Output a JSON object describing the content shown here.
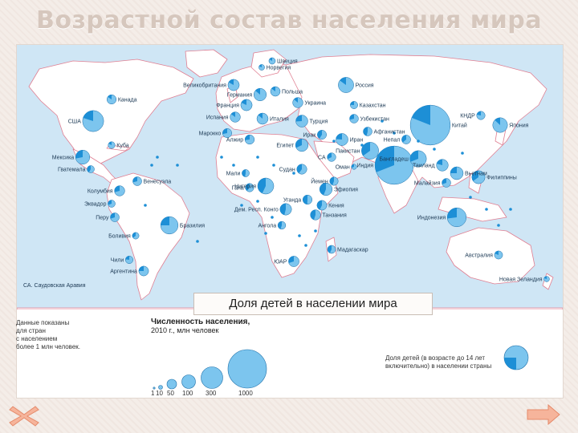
{
  "title": "Возрастной состав населения мира",
  "caption": "Доля детей в населении мира",
  "legend": {
    "note_lines": [
      "Данные показаны",
      "для стран",
      "с населением",
      "более 1 млн человек."
    ],
    "size_title_line1": "Численность населения,",
    "size_title_line2": "2010 г., млн человек",
    "size_values": [
      "1",
      "10",
      "50",
      "100",
      "300",
      "1000"
    ],
    "share_label_line1": "Доля детей (в возрасте до 14 лет",
    "share_label_line2": "включительно) в населении страны"
  },
  "map": {
    "footnote": "СА. Саудовская Аравия",
    "countries": [
      {
        "name": "Канада",
        "pop": 34,
        "share": 0.16
      },
      {
        "name": "США",
        "pop": 310,
        "share": 0.2
      },
      {
        "name": "Мексика",
        "pop": 113,
        "share": 0.28
      },
      {
        "name": "Куба",
        "pop": 11,
        "share": 0.17
      },
      {
        "name": "Гватемала",
        "pop": 14,
        "share": 0.42
      },
      {
        "name": "Венесуэла",
        "pop": 29,
        "share": 0.29
      },
      {
        "name": "Колумбия",
        "pop": 46,
        "share": 0.29
      },
      {
        "name": "Эквадор",
        "pop": 14,
        "share": 0.31
      },
      {
        "name": "Перу",
        "pop": 29,
        "share": 0.3
      },
      {
        "name": "Бразилия",
        "pop": 195,
        "share": 0.25
      },
      {
        "name": "Боливия",
        "pop": 10,
        "share": 0.36
      },
      {
        "name": "Чили",
        "pop": 17,
        "share": 0.23
      },
      {
        "name": "Аргентина",
        "pop": 40,
        "share": 0.25
      },
      {
        "name": "Швеция",
        "pop": 9,
        "share": 0.17
      },
      {
        "name": "Норвегия",
        "pop": 5,
        "share": 0.19
      },
      {
        "name": "Великобритания",
        "pop": 62,
        "share": 0.17
      },
      {
        "name": "Германия",
        "pop": 82,
        "share": 0.14
      },
      {
        "name": "Франция",
        "pop": 63,
        "share": 0.18
      },
      {
        "name": "Польша",
        "pop": 38,
        "share": 0.15
      },
      {
        "name": "Испания",
        "pop": 46,
        "share": 0.15
      },
      {
        "name": "Италия",
        "pop": 60,
        "share": 0.14
      },
      {
        "name": "Россия",
        "pop": 142,
        "share": 0.15
      },
      {
        "name": "Украина",
        "pop": 46,
        "share": 0.14
      },
      {
        "name": "Казахстан",
        "pop": 16,
        "share": 0.24
      },
      {
        "name": "Узбекистан",
        "pop": 28,
        "share": 0.29
      },
      {
        "name": "Турция",
        "pop": 73,
        "share": 0.26
      },
      {
        "name": "Марокко",
        "pop": 32,
        "share": 0.28
      },
      {
        "name": "Алжир",
        "pop": 35,
        "share": 0.27
      },
      {
        "name": "Египет",
        "pop": 84,
        "share": 0.32
      },
      {
        "name": "Ирак",
        "pop": 32,
        "share": 0.41
      },
      {
        "name": "СА",
        "pop": 26,
        "share": 0.32
      },
      {
        "name": "Иран",
        "pop": 75,
        "share": 0.24
      },
      {
        "name": "Афганистан",
        "pop": 29,
        "share": 0.46
      },
      {
        "name": "Пакистан",
        "pop": 185,
        "share": 0.35
      },
      {
        "name": "Индия",
        "pop": 1225,
        "share": 0.31
      },
      {
        "name": "Непал",
        "pop": 30,
        "share": 0.36
      },
      {
        "name": "Бангладеш",
        "pop": 164,
        "share": 0.31
      },
      {
        "name": "Китай",
        "pop": 1341,
        "share": 0.19
      },
      {
        "name": "КНДР",
        "pop": 24,
        "share": 0.22
      },
      {
        "name": "Япония",
        "pop": 127,
        "share": 0.13
      },
      {
        "name": "Таиланд",
        "pop": 69,
        "share": 0.21
      },
      {
        "name": "Вьетнам",
        "pop": 88,
        "share": 0.25
      },
      {
        "name": "Филиппины",
        "pop": 93,
        "share": 0.35
      },
      {
        "name": "Малайзия",
        "pop": 28,
        "share": 0.3
      },
      {
        "name": "Индонезия",
        "pop": 240,
        "share": 0.27
      },
      {
        "name": "Оман",
        "pop": 3,
        "share": 0.32
      },
      {
        "name": "Йемен",
        "pop": 24,
        "share": 0.44
      },
      {
        "name": "Судан",
        "pop": 43,
        "share": 0.4
      },
      {
        "name": "Нигерия",
        "pop": 158,
        "share": 0.43
      },
      {
        "name": "Эфиопия",
        "pop": 83,
        "share": 0.44
      },
      {
        "name": "Уганда",
        "pop": 34,
        "share": 0.49
      },
      {
        "name": "Кения",
        "pop": 40,
        "share": 0.43
      },
      {
        "name": "Дем. Респ. Конго",
        "pop": 66,
        "share": 0.46
      },
      {
        "name": "Танзания",
        "pop": 45,
        "share": 0.45
      },
      {
        "name": "Ангола",
        "pop": 19,
        "share": 0.45
      },
      {
        "name": "Мадагаскар",
        "pop": 21,
        "share": 0.43
      },
      {
        "name": "ЮАР",
        "pop": 50,
        "share": 0.3
      },
      {
        "name": "Австралия",
        "pop": 22,
        "share": 0.19
      },
      {
        "name": "Новая Зеландия",
        "pop": 4,
        "share": 0.2
      },
      {
        "name": "Гана",
        "pop": 24,
        "share": 0.39
      },
      {
        "name": "Мали",
        "pop": 15,
        "share": 0.47
      }
    ]
  },
  "colors": {
    "ocean": "#cfe6f5",
    "land": "#ffffff",
    "border": "#e07f92",
    "pie_light": "#7cc5ee",
    "pie_dark": "#1d8fd6"
  },
  "nav": {
    "close_icon": "close-x-icon",
    "next_icon": "next-arrow-icon"
  }
}
